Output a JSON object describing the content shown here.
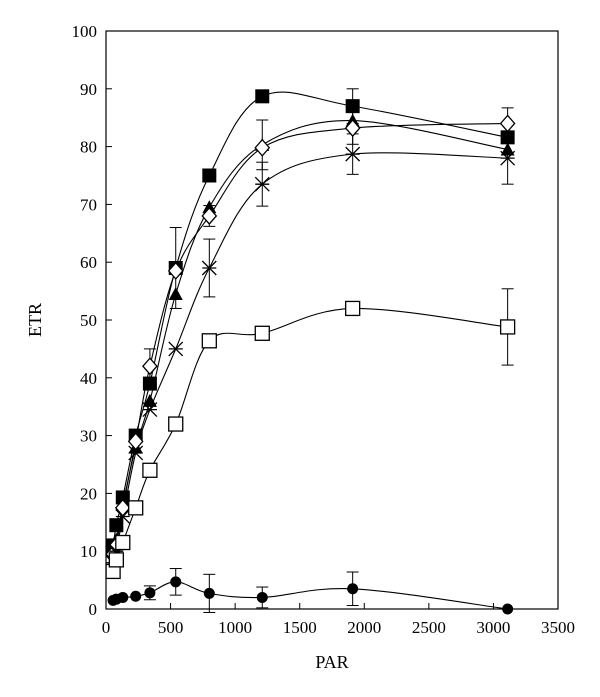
{
  "chart_data": {
    "type": "line",
    "title": "",
    "xlabel": "PAR",
    "ylabel": "ETR",
    "xlim": [
      0,
      3500
    ],
    "ylim": [
      0,
      100
    ],
    "xticks": [
      "0",
      "500",
      "1000",
      "1500",
      "2000",
      "2500",
      "3000",
      "3500"
    ],
    "yticks": [
      "0",
      "10",
      "20",
      "30",
      "40",
      "50",
      "60",
      "70",
      "80",
      "90",
      "100"
    ],
    "grid": false,
    "legend": "none",
    "x": [
      55,
      80,
      130,
      230,
      340,
      540,
      800,
      1210,
      1910,
      3110
    ],
    "series": [
      {
        "marker": "filled-square",
        "values": [
          11,
          14.5,
          19.3,
          30,
          39,
          59,
          75,
          88.7,
          87,
          81.6
        ],
        "errors": [
          0,
          0,
          0,
          0,
          0,
          7,
          0,
          0,
          3,
          0
        ]
      },
      {
        "marker": "filled-triangle",
        "values": [
          10.5,
          12,
          18,
          28,
          36,
          54.5,
          69.5,
          80.3,
          84.5,
          79.5
        ],
        "errors": [
          0,
          0,
          0,
          0,
          0,
          0,
          0,
          4.3,
          0,
          0
        ]
      },
      {
        "marker": "open-diamond",
        "values": [
          9.5,
          11,
          17.5,
          29,
          42,
          58.5,
          68,
          79.8,
          83.2,
          84
        ],
        "errors": [
          0,
          0,
          0,
          0,
          3,
          0,
          1.8,
          0,
          2.8,
          2.7
        ]
      },
      {
        "marker": "asterisk",
        "values": [
          8,
          10,
          16,
          27,
          34.5,
          45,
          59,
          73.5,
          78.7,
          78
        ],
        "errors": [
          0,
          0,
          0,
          0,
          0,
          0,
          5,
          3.8,
          3.5,
          4.5
        ]
      },
      {
        "marker": "open-square",
        "values": [
          6.5,
          8.5,
          11.5,
          17.5,
          24,
          32,
          46.4,
          47.7,
          52,
          48.8
        ],
        "errors": [
          0,
          0,
          0,
          0,
          0,
          0,
          0,
          0,
          0,
          6.6
        ]
      },
      {
        "marker": "filled-circle",
        "values": [
          1.5,
          1.7,
          2,
          2.2,
          2.8,
          4.7,
          2.7,
          2,
          3.5,
          0
        ],
        "errors": [
          0,
          0,
          0,
          0,
          1.2,
          2.3,
          3.3,
          1.8,
          2.9,
          0
        ]
      }
    ]
  }
}
